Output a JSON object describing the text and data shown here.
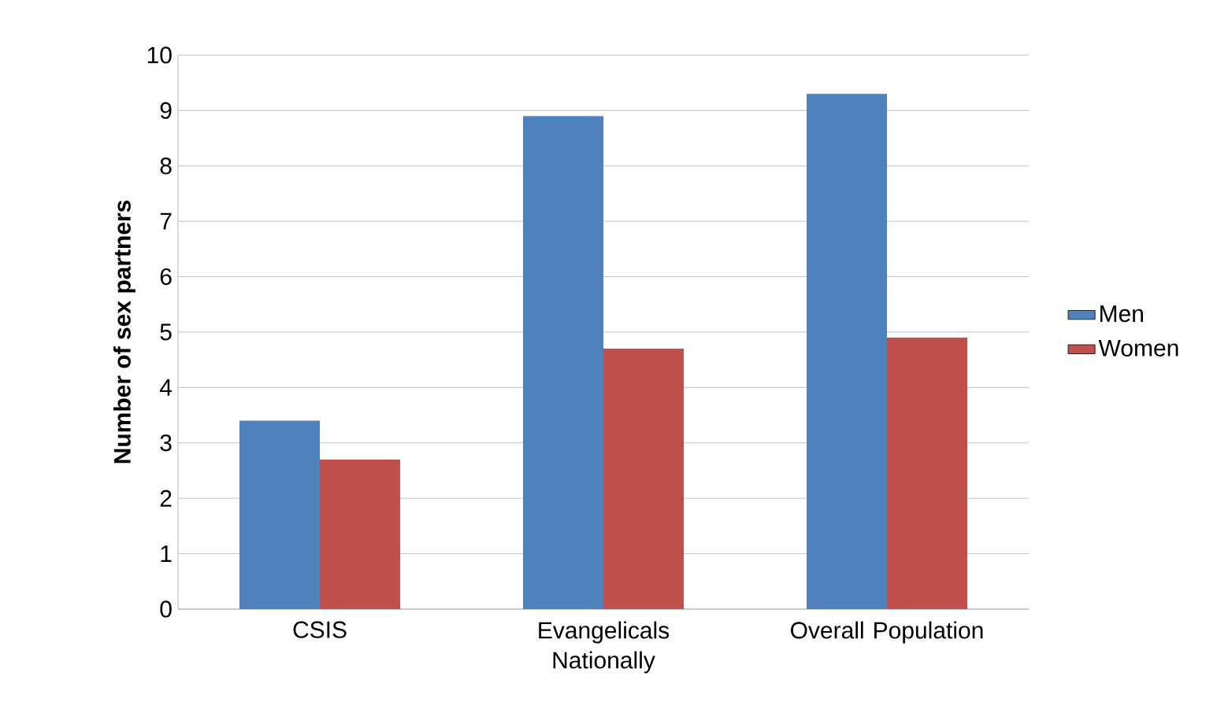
{
  "chart_data": {
    "type": "bar",
    "ylabel": "Number of sex partners",
    "categories": [
      "CSIS",
      "Evangelicals Nationally",
      "Overall Population"
    ],
    "series": [
      {
        "name": "Men",
        "color": "#4f81bd",
        "values": [
          3.4,
          8.9,
          9.3
        ]
      },
      {
        "name": "Women",
        "color": "#c0504d",
        "values": [
          2.7,
          4.7,
          4.9
        ]
      }
    ],
    "ylim": [
      0,
      10
    ],
    "yticks": [
      0,
      1,
      2,
      3,
      4,
      5,
      6,
      7,
      8,
      9,
      10
    ],
    "grid": "y",
    "legend": "right"
  }
}
